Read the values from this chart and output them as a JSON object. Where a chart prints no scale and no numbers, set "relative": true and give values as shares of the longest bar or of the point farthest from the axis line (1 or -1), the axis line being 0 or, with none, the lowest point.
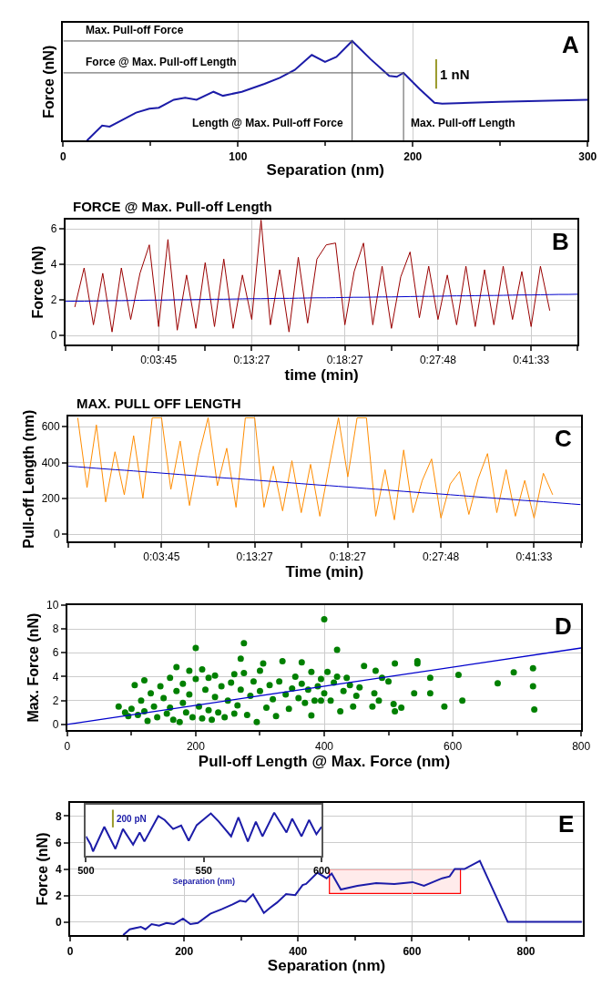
{
  "chart_data": [
    {
      "type": "line",
      "xlabel": "Separation (nm)",
      "ylabel": "Force (nN)",
      "relative": true,
      "grid": "x",
      "xlim": [
        0,
        300
      ],
      "xticks": [
        0,
        {
          "value": 50,
          "label": null
        },
        100,
        {
          "value": 150,
          "label": null
        },
        200,
        {
          "value": 250,
          "label": null
        },
        300
      ],
      "series": [
        {
          "color": "#1c1ca8",
          "x": [
            13.6,
            22.3,
            26.6,
            33.1,
            41.7,
            49.3,
            54.7,
            63.3,
            69.8,
            76.3,
            86.0,
            91.4,
            102.2,
            115.2,
            123.9,
            132.5,
            142.2,
            149.8,
            156.3,
            165.3,
            175.7,
            186.5,
            190.8,
            194.7,
            203.8,
            212.4,
            216.8,
            249.2,
            300
          ],
          "values": [
            0,
            0.15,
            0.14,
            0.2,
            0.28,
            0.32,
            0.33,
            0.41,
            0.43,
            0.41,
            0.49,
            0.45,
            0.49,
            0.57,
            0.63,
            0.71,
            0.86,
            0.79,
            0.84,
            1.0,
            0.82,
            0.65,
            0.64,
            0.68,
            0.52,
            0.38,
            0.37,
            0.39,
            0.41
          ]
        }
      ],
      "ref_lines": [
        {
          "axis": "y",
          "value": 1.0,
          "label": "Max. Pull-off Force",
          "color": "#555555"
        },
        {
          "axis": "y",
          "value": 0.68,
          "label": "Force @ Max. Pull-off Length",
          "color": "#555555"
        },
        {
          "axis": "x",
          "value": 165.3,
          "label": "Length @ Max. Pull-off Force",
          "color": "#555555"
        },
        {
          "axis": "x",
          "value": 194.7,
          "label": "Max. Pull-off Length",
          "color": "#555555"
        }
      ],
      "annotations": [
        "1 nN",
        "A"
      ]
    },
    {
      "type": "line",
      "title": "FORCE @ Max. Pull-off Length",
      "xlabel": "time (min)",
      "ylabel": "Force (nN)",
      "grid": true,
      "ylim": [
        -0.5,
        6.5
      ],
      "yticks": [
        0,
        2,
        4,
        6
      ],
      "categories": [
        null,
        null,
        null,
        null,
        null,
        null,
        null,
        null,
        null,
        null,
        "0:03:45",
        null,
        null,
        null,
        null,
        null,
        null,
        null,
        null,
        null,
        "0:13:27",
        null,
        null,
        null,
        null,
        null,
        null,
        null,
        null,
        null,
        "0:18:27",
        null,
        null,
        null,
        null,
        null,
        null,
        null,
        null,
        null,
        "0:27:48",
        null,
        null,
        null,
        null,
        null,
        null,
        null,
        null,
        null,
        "0:41:33",
        null,
        null,
        null,
        null,
        null
      ],
      "series": [
        {
          "color": "#990000",
          "values": [
            null,
            1.6,
            3.8,
            0.6,
            3.5,
            0.2,
            3.8,
            0.9,
            3.5,
            5.1,
            0.5,
            5.4,
            0.3,
            3.4,
            0.4,
            4.1,
            0.5,
            4.3,
            0.4,
            3.4,
            0.9,
            6.5,
            0.6,
            3.7,
            0.2,
            4.4,
            0.7,
            4.3,
            5.1,
            5.2,
            0.6,
            3.6,
            5.2,
            0.6,
            3.9,
            0.4,
            3.3,
            4.7,
            1.0,
            3.9,
            0.9,
            3.4,
            0.6,
            3.9,
            0.5,
            3.7,
            0.6,
            3.9,
            0.9,
            3.6,
            0.5,
            3.9,
            1.4,
            null,
            null,
            null
          ]
        },
        {
          "type": "line",
          "color": "#0000cc",
          "values": [
            1.92,
            1.93,
            1.93,
            1.94,
            1.95,
            1.96,
            1.96,
            1.97,
            1.98,
            1.99,
            1.99,
            2.0,
            2.01,
            2.01,
            2.02,
            2.03,
            2.04,
            2.04,
            2.05,
            2.06,
            2.07,
            2.07,
            2.08,
            2.09,
            2.09,
            2.1,
            2.11,
            2.12,
            2.12,
            2.13,
            2.14,
            2.15,
            2.15,
            2.16,
            2.17,
            2.17,
            2.18,
            2.19,
            2.2,
            2.2,
            2.21,
            2.22,
            2.23,
            2.23,
            2.24,
            2.25,
            2.25,
            2.26,
            2.27,
            2.28,
            2.28,
            2.29,
            2.3,
            2.31,
            2.31,
            2.32
          ]
        }
      ],
      "annotations": [
        "B"
      ]
    },
    {
      "type": "line",
      "title": "MAX. PULL OFF LENGTH",
      "xlabel": "Time (min)",
      "ylabel": "Pull-off Length (nm)",
      "grid": true,
      "ylim": [
        -40,
        655
      ],
      "yticks": [
        0,
        200,
        400,
        600
      ],
      "categories": [
        null,
        null,
        null,
        null,
        null,
        null,
        null,
        null,
        null,
        null,
        "0:03:45",
        null,
        null,
        null,
        null,
        null,
        null,
        null,
        null,
        null,
        "0:13:27",
        null,
        null,
        null,
        null,
        null,
        null,
        null,
        null,
        null,
        "0:18:27",
        null,
        null,
        null,
        null,
        null,
        null,
        null,
        null,
        null,
        "0:27:48",
        null,
        null,
        null,
        null,
        null,
        null,
        null,
        null,
        null,
        "0:41:33",
        null,
        null,
        null,
        null,
        null
      ],
      "series": [
        {
          "color": "#ff8c00",
          "values": [
            null,
            650,
            260,
            610,
            180,
            460,
            220,
            550,
            200,
            650,
            650,
            250,
            520,
            160,
            440,
            650,
            270,
            480,
            150,
            650,
            650,
            150,
            380,
            130,
            410,
            120,
            390,
            100,
            380,
            650,
            320,
            650,
            650,
            100,
            360,
            80,
            470,
            120,
            300,
            420,
            90,
            280,
            350,
            110,
            310,
            450,
            120,
            360,
            100,
            300,
            90,
            340,
            220,
            null,
            null,
            null
          ]
        },
        {
          "type": "line",
          "color": "#0000cc",
          "values": [
            380,
            376,
            372,
            368,
            364,
            360,
            357,
            353,
            349,
            345,
            341,
            337,
            333,
            329,
            325,
            321,
            317,
            313,
            310,
            306,
            302,
            298,
            294,
            290,
            286,
            282,
            278,
            274,
            271,
            267,
            263,
            259,
            255,
            251,
            247,
            243,
            239,
            235,
            231,
            228,
            224,
            220,
            216,
            212,
            208,
            204,
            200,
            196,
            192,
            188,
            185,
            181,
            177,
            173,
            169,
            165
          ]
        }
      ],
      "annotations": [
        "C"
      ]
    },
    {
      "type": "scatter",
      "xlabel": "Pull-off Length @ Max. Force (nm)",
      "ylabel": "Max. Force (nN)",
      "grid": true,
      "xlim": [
        0,
        800
      ],
      "ylim": [
        -0.5,
        10
      ],
      "yticks": [
        0,
        2,
        4,
        6,
        8,
        10
      ],
      "xticks": [
        0,
        {
          "value": 100,
          "label": null
        },
        200,
        {
          "value": 300,
          "label": null
        },
        400,
        {
          "value": 500,
          "label": null
        },
        600,
        {
          "value": 700,
          "label": null
        },
        800
      ],
      "series": [
        {
          "color": "#008000",
          "marker": "circle",
          "x": [
            200,
            275,
            270,
            400,
            420,
            510,
            545,
            545,
            565,
            565,
            587,
            609,
            615,
            670,
            695,
            725,
            725,
            727,
            540,
            520,
            510,
            508,
            500,
            490,
            480,
            475,
            485,
            478,
            462,
            445,
            425,
            410,
            395,
            380,
            335,
            365,
            305,
            170,
            105,
            120,
            80,
            90,
            95,
            100,
            110,
            115,
            120,
            125,
            130,
            135,
            140,
            145,
            150,
            155,
            160,
            160,
            165,
            170,
            175,
            180,
            180,
            185,
            190,
            190,
            195,
            200,
            205,
            210,
            210,
            215,
            220,
            220,
            225,
            230,
            230,
            235,
            240,
            245,
            250,
            255,
            260,
            260,
            265,
            270,
            275,
            280,
            285,
            290,
            295,
            300,
            300,
            310,
            315,
            320,
            325,
            330,
            340,
            345,
            350,
            355,
            360,
            365,
            370,
            375,
            380,
            385,
            390,
            395,
            400,
            405,
            415,
            420,
            430,
            435,
            440,
            450,
            455
          ],
          "values": [
            6.4,
            6.8,
            5.5,
            8.8,
            6.25,
            5.1,
            5.3,
            5.1,
            3.9,
            2.6,
            1.5,
            4.15,
            2.0,
            3.45,
            4.35,
            4.7,
            3.2,
            1.25,
            2.6,
            1.4,
            1.1,
            1.7,
            3.6,
            3.9,
            4.5,
            1.5,
            2.0,
            2.6,
            4.9,
            1.5,
            1.1,
            2.0,
            2.0,
            0.75,
            5.3,
            5.2,
            5.1,
            4.8,
            3.3,
            3.7,
            1.5,
            1.0,
            0.7,
            1.3,
            0.8,
            2.0,
            1.1,
            0.3,
            2.6,
            1.5,
            0.6,
            3.2,
            2.2,
            0.9,
            3.9,
            1.4,
            0.4,
            2.8,
            0.2,
            1.8,
            3.4,
            1.0,
            4.5,
            2.5,
            0.6,
            3.8,
            1.5,
            4.6,
            0.5,
            2.9,
            3.9,
            1.2,
            0.4,
            2.3,
            4.1,
            1.0,
            3.2,
            0.6,
            2.0,
            3.5,
            4.2,
            0.9,
            1.6,
            2.9,
            4.3,
            0.8,
            2.4,
            3.6,
            0.2,
            2.8,
            4.5,
            1.4,
            3.3,
            2.1,
            0.7,
            3.6,
            2.5,
            1.3,
            3.0,
            4.0,
            2.2,
            3.4,
            1.8,
            2.9,
            4.4,
            2.0,
            3.2,
            3.8,
            2.6,
            4.4,
            3.5,
            4.0,
            2.8,
            3.9,
            3.3,
            2.4,
            3.1
          ]
        },
        {
          "type": "line",
          "color": "#0000cc",
          "x": [
            0,
            800
          ],
          "values": [
            0,
            6.4
          ]
        }
      ],
      "annotations": [
        "D"
      ]
    },
    {
      "type": "line",
      "xlabel": "Separation (nm)",
      "ylabel": "Force (nN)",
      "grid": true,
      "xlim": [
        0,
        900
      ],
      "ylim": [
        -1,
        9
      ],
      "yticks": [
        0,
        2,
        4,
        6,
        8
      ],
      "xticks": [
        0,
        {
          "value": 100,
          "label": null
        },
        200,
        {
          "value": 300,
          "label": null
        },
        400,
        {
          "value": 500,
          "label": null
        },
        600,
        {
          "value": 700,
          "label": null
        },
        800
      ],
      "series": [
        {
          "color": "#1c1ca8",
          "x": [
            93,
            104.5,
            124,
            132,
            143,
            156,
            169,
            182,
            198,
            211,
            224,
            246,
            266,
            285,
            298,
            308,
            321,
            340,
            350,
            363,
            379,
            395,
            408,
            414,
            434,
            450,
            459,
            475,
            504,
            537,
            569,
            601,
            621,
            653,
            666,
            675,
            692,
            719,
            768,
            898
          ],
          "values": [
            -1.0,
            -0.56,
            -0.37,
            -0.56,
            -0.17,
            -0.28,
            -0.08,
            -0.17,
            0.25,
            -0.17,
            -0.08,
            0.62,
            0.96,
            1.32,
            1.6,
            1.52,
            2.08,
            0.68,
            1.04,
            1.46,
            2.11,
            2.03,
            2.79,
            2.87,
            3.72,
            3.3,
            3.66,
            2.45,
            2.73,
            2.93,
            2.87,
            3.01,
            2.73,
            3.3,
            3.44,
            4.0,
            4.0,
            4.62,
            0,
            0
          ]
        }
      ],
      "bands": [
        {
          "axis": "x",
          "from": 455,
          "to": 685,
          "color": "#ff0000"
        }
      ],
      "annotations": [
        "E"
      ]
    },
    {
      "type": "line",
      "xlabel": "Separation (nm)",
      "relative": true,
      "xlim": [
        500,
        600
      ],
      "xticks": [
        500,
        550,
        600
      ],
      "series": [
        {
          "color": "#1c1ca8",
          "x": [
            500,
            502,
            503,
            507.8,
            512.5,
            515.7,
            520,
            522.8,
            524.8,
            530.7,
            533.4,
            537,
            540.4,
            543.6,
            547,
            553,
            556.4,
            561.6,
            564.7,
            568.7,
            572.1,
            574.9,
            579.9,
            585.1,
            587.5,
            591.5,
            594.7,
            597.8,
            600
          ],
          "values": [
            0.45,
            0.26,
            0.1,
            0.67,
            0.16,
            0.62,
            0.26,
            0.54,
            0.33,
            0.92,
            0.83,
            0.62,
            0.7,
            0.35,
            0.71,
            0.98,
            0.79,
            0.45,
            0.89,
            0.33,
            0.79,
            0.45,
            1.0,
            0.54,
            0.86,
            0.45,
            0.83,
            0.5,
            0.67
          ]
        }
      ],
      "annotations": [
        "200 pN"
      ]
    }
  ]
}
